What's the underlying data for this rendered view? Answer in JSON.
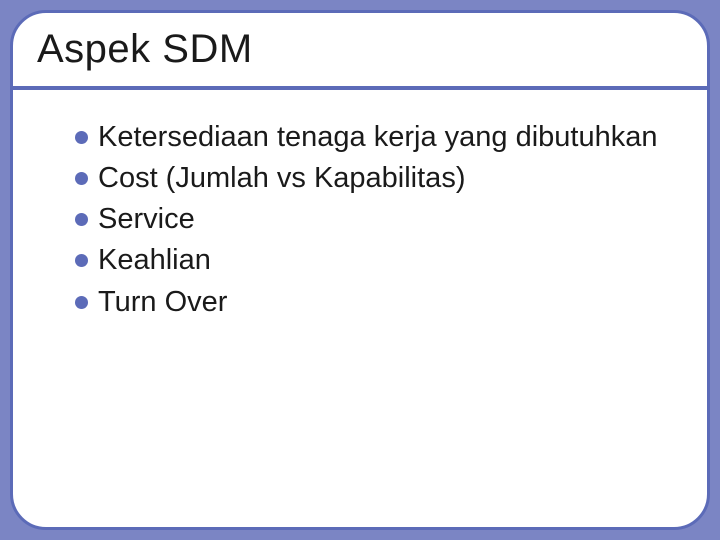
{
  "slide": {
    "title": "Aspek SDM",
    "bullets": [
      {
        "text": "Ketersediaan tenaga kerja yang dibutuhkan"
      },
      {
        "text": "Cost (Jumlah vs Kapabilitas)"
      },
      {
        "text": "Service"
      },
      {
        "text": "Keahlian"
      },
      {
        "text": "Turn Over"
      }
    ],
    "colors": {
      "slide_background": "#7b85c4",
      "card_background": "#ffffff",
      "card_border": "#5c6bb8",
      "bullet_color": "#5c6bb8",
      "title_underline": "#5c6bb8",
      "text_color": "#1a1a1a"
    },
    "typography": {
      "title_fontsize": 40,
      "body_fontsize": 29,
      "font_family": "Arial"
    },
    "layout": {
      "card_border_radius": 36,
      "card_border_width": 3,
      "bullet_diameter": 13
    }
  }
}
